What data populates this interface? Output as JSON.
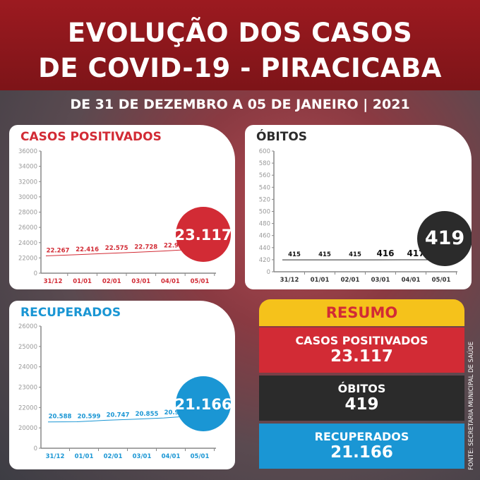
{
  "header": {
    "title_line1": "EVOLUÇÃO DOS  CASOS",
    "title_line2": "DE COVID-19 - PIRACICABA",
    "subtitle": "DE 31 DE DEZEMBRO A 05 DE JANEIRO | 2021"
  },
  "chart_data": [
    {
      "type": "line",
      "title": "CASOS POSITIVADOS",
      "color": "#d22b35",
      "categories": [
        "31/12",
        "01/01",
        "02/01",
        "03/01",
        "04/01",
        "05/01"
      ],
      "values": [
        22267,
        22416,
        22575,
        22728,
        22907,
        23117
      ],
      "labels": [
        "22.267",
        "22.416",
        "22.575",
        "22.728",
        "22.907",
        "23.117"
      ],
      "yticks": [
        0,
        22000,
        24000,
        26000,
        28000,
        30000,
        32000,
        34000,
        36000
      ]
    },
    {
      "type": "line",
      "title": "ÓBITOS",
      "color": "#2b2b2b",
      "categories": [
        "31/12",
        "01/01",
        "02/01",
        "03/01",
        "04/01",
        "05/01"
      ],
      "values": [
        415,
        415,
        415,
        416,
        417,
        419
      ],
      "labels": [
        "415",
        "415",
        "415",
        "416",
        "417",
        "419"
      ],
      "yticks": [
        0,
        420,
        440,
        460,
        480,
        500,
        520,
        540,
        560,
        580,
        600
      ]
    },
    {
      "type": "line",
      "title": "RECUPERADOS",
      "color": "#1a96d4",
      "categories": [
        "31/12",
        "01/01",
        "02/01",
        "03/01",
        "04/01",
        "05/01"
      ],
      "values": [
        20588,
        20599,
        20747,
        20855,
        20976,
        21166
      ],
      "labels": [
        "20.588",
        "20.599",
        "20.747",
        "20.855",
        "20.976",
        "21.166"
      ],
      "yticks": [
        0,
        20000,
        22000,
        23000,
        24000,
        25000,
        26000
      ]
    }
  ],
  "resumo": {
    "title": "RESUMO",
    "items": [
      {
        "label": "CASOS POSITIVADOS",
        "value": "23.117",
        "color": "#d22b35"
      },
      {
        "label": "ÓBITOS",
        "value": "419",
        "color": "#2b2b2b"
      },
      {
        "label": "RECUPERADOS",
        "value": "21.166",
        "color": "#1a96d4"
      }
    ]
  },
  "source": "FONTE: SECRETARIA MUNICIPAL DE SAÚDE"
}
